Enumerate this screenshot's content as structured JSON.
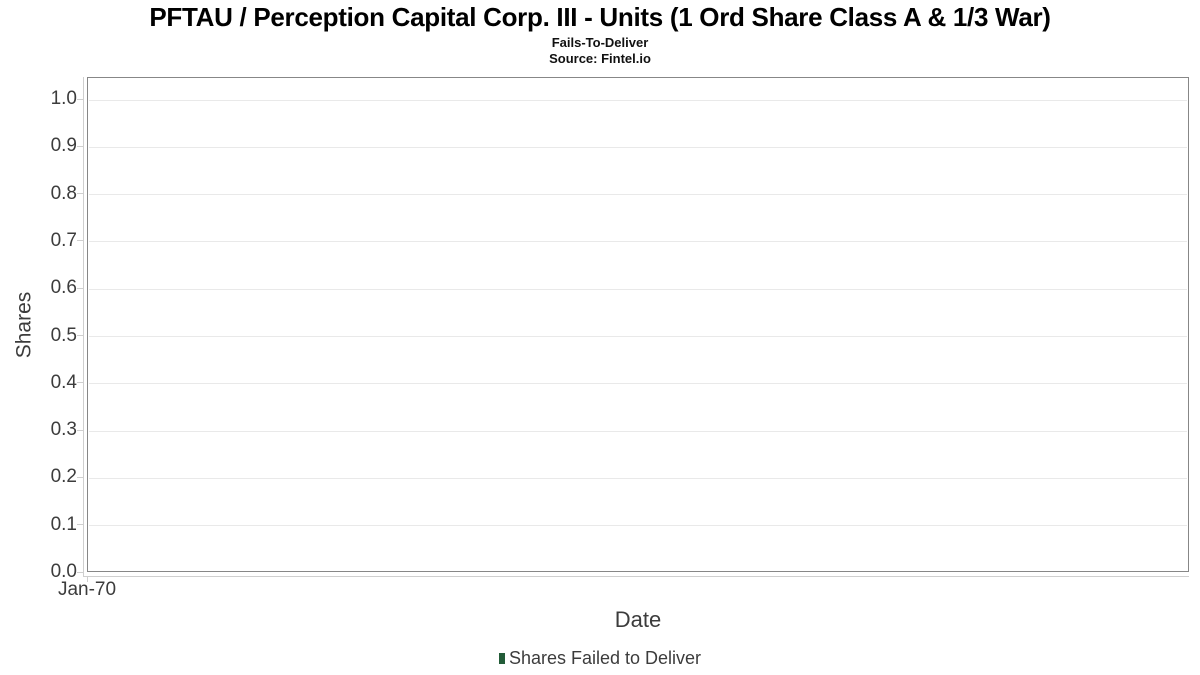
{
  "header": {
    "title": "PFTAU / Perception Capital Corp. III - Units (1 Ord Share Class A & 1/3 War)",
    "subtitle": "Fails-To-Deliver",
    "source": "Source: Fintel.io"
  },
  "chart_data": {
    "type": "bar",
    "title": "PFTAU / Perception Capital Corp. III - Units (1 Ord Share Class A & 1/3 War)",
    "subtitle": "Fails-To-Deliver",
    "source_note": "Source: Fintel.io",
    "xlabel": "Date",
    "ylabel": "Shares",
    "ylim": [
      0.0,
      1.045
    ],
    "yticks": [
      0.0,
      0.1,
      0.2,
      0.3,
      0.4,
      0.5,
      0.6,
      0.7,
      0.8,
      0.9,
      1.0
    ],
    "ytick_labels": [
      "0.0",
      "0.1",
      "0.2",
      "0.3",
      "0.4",
      "0.5",
      "0.6",
      "0.7",
      "0.8",
      "0.9",
      "1.0"
    ],
    "xtick_labels": [
      "Jan-70"
    ],
    "grid": "horizontal-only",
    "legend_position": "bottom-center",
    "series": [
      {
        "name": "Shares Failed to Deliver",
        "color": "#235c38",
        "values": []
      }
    ]
  },
  "colors": {
    "title_text": "#000000",
    "axis_text": "#3c3c3c",
    "plot_border": "#878787",
    "gridline": "#e9e9e9",
    "axis_line": "#cfcfcf",
    "legend_green": "#235c38"
  }
}
